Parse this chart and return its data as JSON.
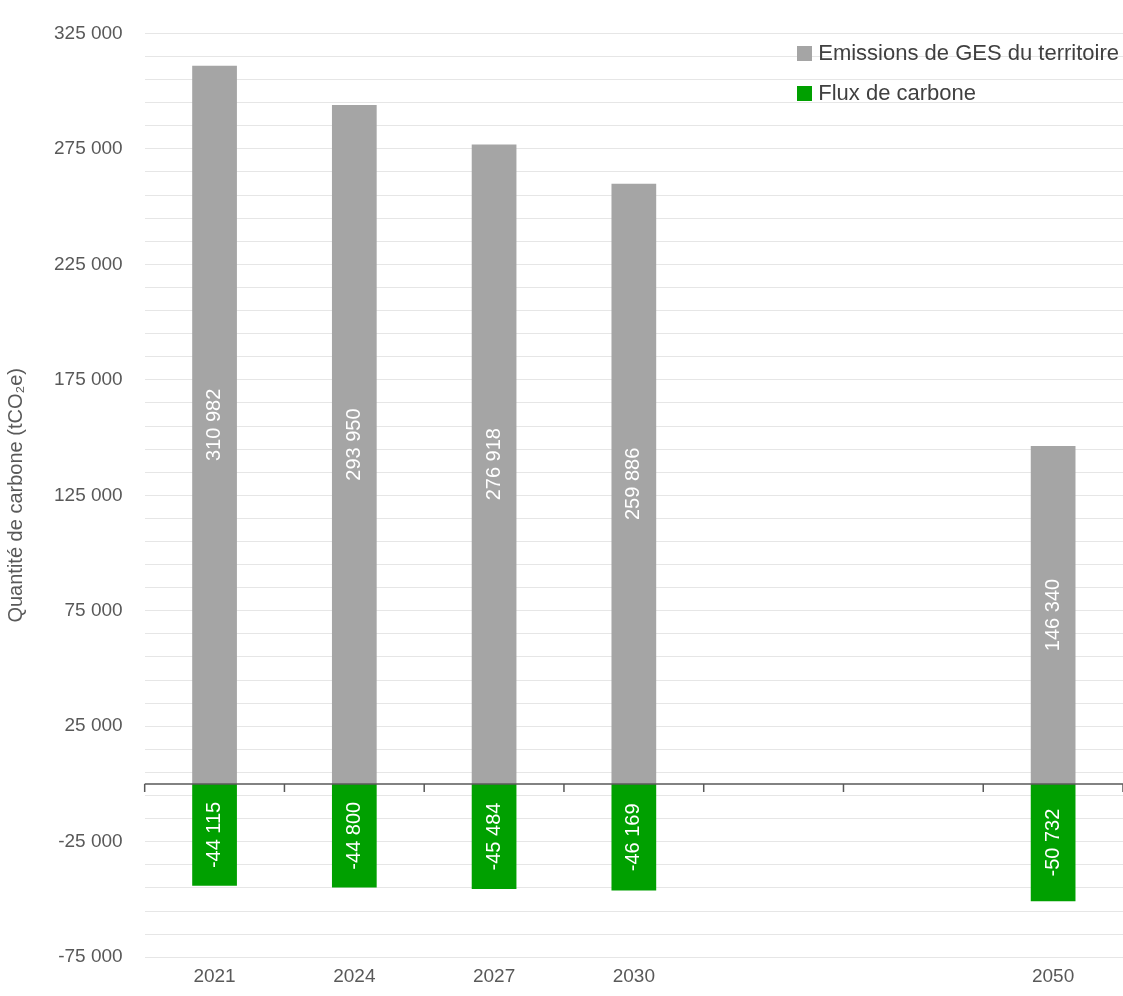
{
  "chart_data": {
    "type": "bar",
    "stacked": true,
    "ylabel": "Quantité de carbone (tCO₂e)",
    "categories": [
      "2021",
      "2024",
      "2027",
      "2030",
      null,
      null,
      "2050"
    ],
    "series": [
      {
        "name": "Emissions de GES du territoire",
        "color": "#a5a5a5",
        "values": [
          310982,
          293950,
          276918,
          259886,
          null,
          null,
          146340
        ],
        "value_labels": [
          "310 982",
          "293 950",
          "276 918",
          "259 886",
          null,
          null,
          "146 340"
        ]
      },
      {
        "name": "Flux de carbone",
        "color": "#00a000",
        "values": [
          -44115,
          -44800,
          -45484,
          -46169,
          null,
          null,
          -50732
        ],
        "value_labels": [
          "-44 115",
          "-44 800",
          "-45 484",
          "-46 169",
          null,
          null,
          "-50 732"
        ]
      }
    ],
    "ylim": [
      -75000,
      325000
    ],
    "yticks": [
      {
        "value": -75000,
        "label": "-75 000"
      },
      {
        "value": -65000,
        "label": null
      },
      {
        "value": -55000,
        "label": null
      },
      {
        "value": -45000,
        "label": null
      },
      {
        "value": -35000,
        "label": null
      },
      {
        "value": -25000,
        "label": "-25 000"
      },
      {
        "value": -15000,
        "label": null
      },
      {
        "value": -5000,
        "label": null
      },
      {
        "value": 5000,
        "label": null
      },
      {
        "value": 15000,
        "label": null
      },
      {
        "value": 25000,
        "label": "25 000"
      },
      {
        "value": 35000,
        "label": null
      },
      {
        "value": 45000,
        "label": null
      },
      {
        "value": 55000,
        "label": null
      },
      {
        "value": 65000,
        "label": null
      },
      {
        "value": 75000,
        "label": "75 000"
      },
      {
        "value": 85000,
        "label": null
      },
      {
        "value": 95000,
        "label": null
      },
      {
        "value": 105000,
        "label": null
      },
      {
        "value": 115000,
        "label": null
      },
      {
        "value": 125000,
        "label": "125 000"
      },
      {
        "value": 135000,
        "label": null
      },
      {
        "value": 145000,
        "label": null
      },
      {
        "value": 155000,
        "label": null
      },
      {
        "value": 165000,
        "label": null
      },
      {
        "value": 175000,
        "label": "175 000"
      },
      {
        "value": 185000,
        "label": null
      },
      {
        "value": 195000,
        "label": null
      },
      {
        "value": 205000,
        "label": null
      },
      {
        "value": 215000,
        "label": null
      },
      {
        "value": 225000,
        "label": "225 000"
      },
      {
        "value": 235000,
        "label": null
      },
      {
        "value": 245000,
        "label": null
      },
      {
        "value": 255000,
        "label": null
      },
      {
        "value": 265000,
        "label": null
      },
      {
        "value": 275000,
        "label": "275 000"
      },
      {
        "value": 285000,
        "label": null
      },
      {
        "value": 295000,
        "label": null
      },
      {
        "value": 305000,
        "label": null
      },
      {
        "value": 315000,
        "label": null
      },
      {
        "value": 325000,
        "label": "325 000"
      }
    ],
    "grid": "y",
    "legend": "top right"
  }
}
